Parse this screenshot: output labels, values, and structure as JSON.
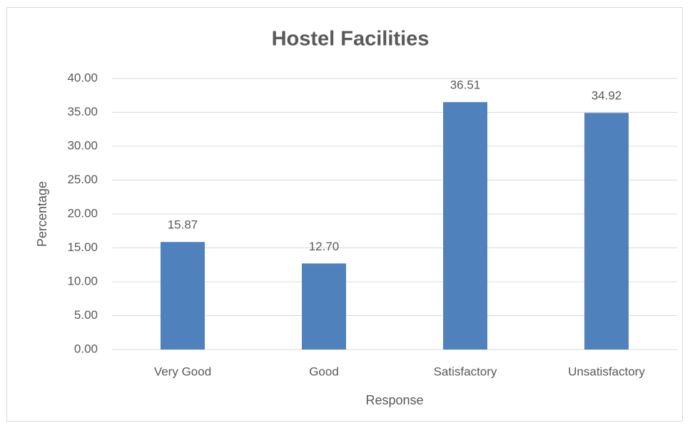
{
  "chart_data": {
    "type": "bar",
    "title": "Hostel Facilities",
    "xlabel": "Response",
    "ylabel": "Percentage",
    "categories": [
      "Very Good",
      "Good",
      "Satisfactory",
      "Unsatisfactory"
    ],
    "values": [
      15.87,
      12.7,
      36.51,
      34.92
    ],
    "value_labels": [
      "15.87",
      "12.70",
      "36.51",
      "34.92"
    ],
    "color": "#4f81bd",
    "ylim": [
      0,
      40
    ],
    "yticks": [
      {
        "value": 0,
        "label": "0.00"
      },
      {
        "value": 5,
        "label": "5.00"
      },
      {
        "value": 10,
        "label": "10.00"
      },
      {
        "value": 15,
        "label": "15.00"
      },
      {
        "value": 20,
        "label": "20.00"
      },
      {
        "value": 25,
        "label": "25.00"
      },
      {
        "value": 30,
        "label": "30.00"
      },
      {
        "value": 35,
        "label": "35.00"
      },
      {
        "value": 40,
        "label": "40.00"
      }
    ],
    "grid": true
  }
}
